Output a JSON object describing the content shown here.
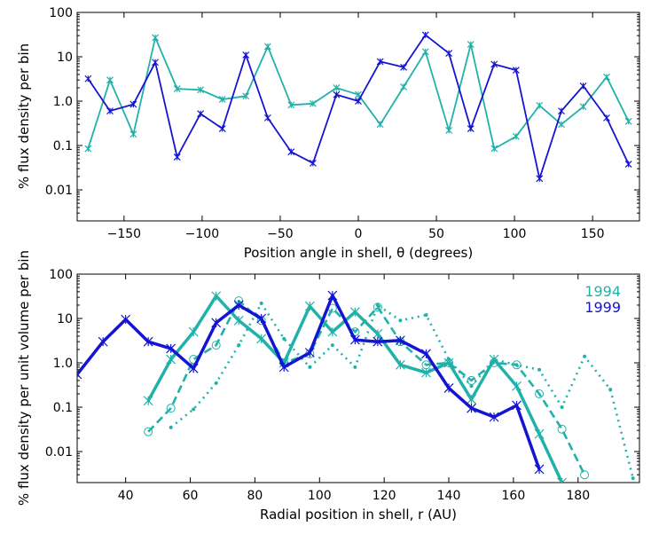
{
  "colors": {
    "cyan": "#20b2aa",
    "blue": "#1414d2"
  },
  "chart_data": [
    {
      "type": "line",
      "title": "",
      "xlabel": "Position angle in shell, θ (degrees)",
      "ylabel": "% flux density per bin",
      "xlim": [
        -180,
        180
      ],
      "ylim": [
        0.002,
        100
      ],
      "yscale": "log",
      "xticks": [
        -150,
        -100,
        -50,
        0,
        50,
        100,
        150
      ],
      "xtick_labels": [
        "−150",
        "−100",
        "−50",
        "0",
        "50",
        "100",
        "150"
      ],
      "yticks": [
        0.01,
        0.1,
        1,
        10,
        100
      ],
      "ytick_labels": [
        "0.01",
        "0.1",
        "1.0",
        "10",
        "100"
      ],
      "series": [
        {
          "name": "1994",
          "color": "cyan",
          "width": 1.8,
          "dash": "",
          "x": [
            -173,
            -159,
            -144,
            -130,
            -116,
            -101,
            -87,
            -72,
            -58,
            -43,
            -29,
            -14,
            0,
            14,
            29,
            43,
            58,
            72,
            87,
            101,
            116,
            130,
            144,
            159,
            173
          ],
          "y": [
            0.085,
            3.0,
            0.18,
            27,
            1.9,
            1.8,
            1.1,
            1.3,
            17,
            0.82,
            0.88,
            2.0,
            1.4,
            0.3,
            2.1,
            13,
            0.22,
            19,
            0.085,
            0.16,
            0.8,
            0.3,
            0.75,
            3.5,
            0.35
          ]
        },
        {
          "name": "1999",
          "color": "blue",
          "width": 1.8,
          "dash": "",
          "x": [
            -173,
            -159,
            -144,
            -130,
            -116,
            -101,
            -87,
            -72,
            -58,
            -43,
            -29,
            -14,
            0,
            14,
            29,
            43,
            58,
            72,
            87,
            101,
            116,
            130,
            144,
            159,
            173
          ],
          "y": [
            3.2,
            0.6,
            0.85,
            7.5,
            0.055,
            0.52,
            0.24,
            11,
            0.42,
            0.072,
            0.04,
            1.4,
            1.0,
            7.8,
            5.8,
            31,
            12,
            0.24,
            6.8,
            5.0,
            0.018,
            0.6,
            2.2,
            0.42,
            0.038
          ]
        }
      ]
    },
    {
      "type": "line",
      "title": "",
      "xlabel": "Radial position in shell, r (AU)",
      "ylabel": "% flux density per unit volume per bin",
      "xlim": [
        25,
        199
      ],
      "ylim": [
        0.002,
        100
      ],
      "yscale": "log",
      "xticks": [
        40,
        60,
        80,
        100,
        120,
        140,
        160,
        180
      ],
      "xtick_labels": [
        "40",
        "60",
        "80",
        "100",
        "120",
        "140",
        "160",
        "180"
      ],
      "yticks": [
        0.01,
        0.1,
        1,
        10,
        100
      ],
      "ytick_labels": [
        "0.01",
        "0.1",
        "1.0",
        "10",
        "100"
      ],
      "legend": [
        {
          "label": "1994",
          "color": "cyan"
        },
        {
          "label": "1999",
          "color": "blue"
        }
      ],
      "legend_position": "top-right",
      "series": [
        {
          "name": "1994 solid",
          "color": "cyan",
          "width": 3.5,
          "dash": "",
          "x": [
            47,
            54,
            61,
            68,
            75,
            82,
            89,
            97,
            104,
            111,
            118,
            125,
            133,
            140,
            147,
            154,
            161,
            168,
            175
          ],
          "y": [
            0.14,
            1.2,
            5.0,
            32,
            9.0,
            3.5,
            1.0,
            19,
            5.0,
            14,
            4.5,
            0.9,
            0.6,
            1.0,
            0.15,
            1.2,
            0.3,
            0.025,
            0.002
          ]
        },
        {
          "name": "1994 dashed",
          "color": "cyan",
          "width": 2.6,
          "dash": "9,5",
          "x": [
            47,
            54,
            61,
            68,
            75,
            82,
            89,
            97,
            104,
            111,
            118,
            125,
            133,
            140,
            147,
            154,
            161,
            168,
            175,
            182
          ],
          "y": [
            0.028,
            0.095,
            1.2,
            2.5,
            25,
            9.0,
            1.0,
            1.6,
            17,
            5.0,
            18,
            3.0,
            0.9,
            1.0,
            0.4,
            1.0,
            0.9,
            0.2,
            0.032,
            0.003
          ]
        },
        {
          "name": "1994 dotted",
          "color": "cyan",
          "width": 2.6,
          "dash": "2,5",
          "x": [
            54,
            61,
            68,
            75,
            82,
            89,
            97,
            104,
            111,
            118,
            125,
            133,
            140,
            147,
            154,
            161,
            168,
            175,
            182,
            190,
            197
          ],
          "y": [
            0.035,
            0.09,
            0.35,
            2.5,
            22,
            3.5,
            0.8,
            2.5,
            0.8,
            20,
            9.0,
            12,
            1.2,
            0.3,
            1.2,
            0.9,
            0.7,
            0.1,
            1.4,
            0.25,
            0.0025
          ]
        },
        {
          "name": "1999",
          "color": "blue",
          "width": 3.5,
          "dash": "",
          "x": [
            25,
            33,
            40,
            47,
            54,
            61,
            68,
            75,
            82,
            89,
            97,
            104,
            111,
            118,
            125,
            133,
            140,
            147,
            154,
            161,
            168
          ],
          "y": [
            0.55,
            3.0,
            9.5,
            3.0,
            2.1,
            0.75,
            8.0,
            20,
            10,
            0.8,
            1.7,
            33,
            3.3,
            3.0,
            3.2,
            1.6,
            0.27,
            0.095,
            0.06,
            0.11,
            0.004
          ]
        }
      ]
    }
  ]
}
